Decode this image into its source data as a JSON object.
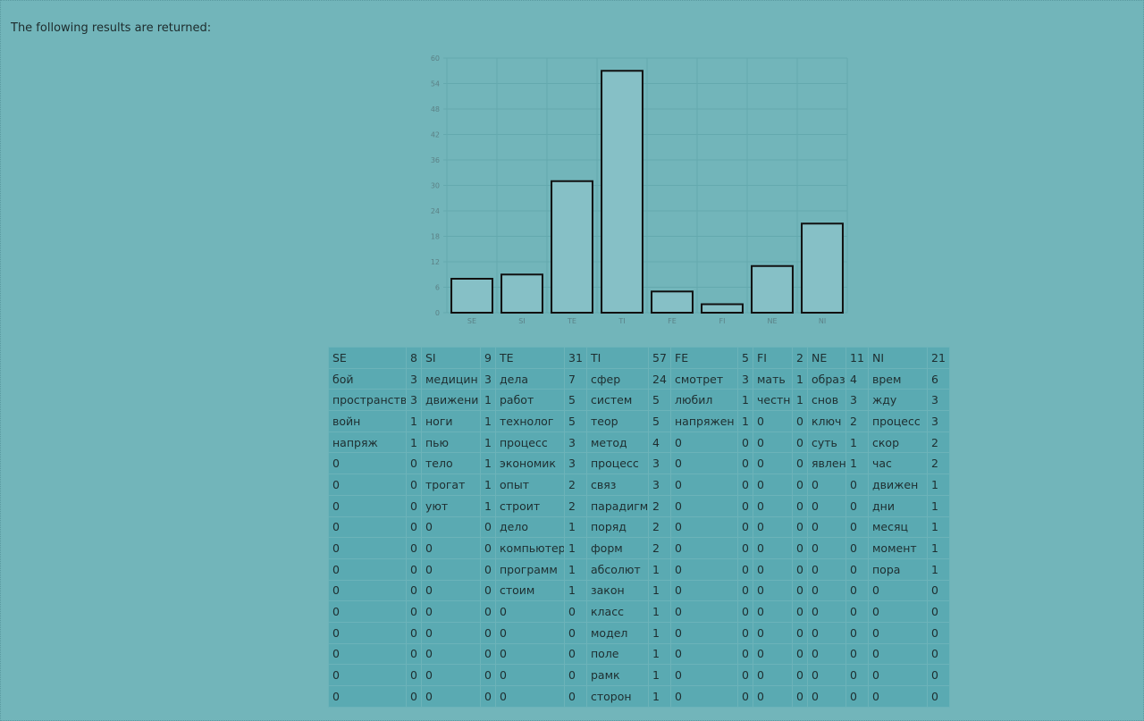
{
  "intro_text": "The following results are returned:",
  "chart_data": {
    "type": "bar",
    "categories": [
      "SE",
      "SI",
      "TE",
      "TI",
      "FE",
      "FI",
      "NE",
      "NI"
    ],
    "values": [
      8,
      9,
      31,
      57,
      5,
      2,
      11,
      21
    ],
    "title": "",
    "xlabel": "",
    "ylabel": "",
    "ylim": [
      0,
      60
    ],
    "yticks": [
      0,
      6,
      12,
      18,
      24,
      30,
      36,
      42,
      48,
      54,
      60
    ],
    "grid": true,
    "bar_fill": "#86c0c6",
    "bar_stroke": "#111111"
  },
  "table": {
    "columns": [
      {
        "word": "SE",
        "count": "8",
        "rows": [
          [
            "бой",
            "3"
          ],
          [
            "пространств",
            "3"
          ],
          [
            "войн",
            "1"
          ],
          [
            "напряж",
            "1"
          ],
          [
            "0",
            "0"
          ],
          [
            "0",
            "0"
          ],
          [
            "0",
            "0"
          ],
          [
            "0",
            "0"
          ],
          [
            "0",
            "0"
          ],
          [
            "0",
            "0"
          ],
          [
            "0",
            "0"
          ],
          [
            "0",
            "0"
          ],
          [
            "0",
            "0"
          ],
          [
            "0",
            "0"
          ],
          [
            "0",
            "0"
          ],
          [
            "0",
            "0"
          ]
        ]
      },
      {
        "word": "SI",
        "count": "9",
        "rows": [
          [
            "медицин",
            "3"
          ],
          [
            "движени",
            "1"
          ],
          [
            "ноги",
            "1"
          ],
          [
            "пью",
            "1"
          ],
          [
            "тело",
            "1"
          ],
          [
            "трогат",
            "1"
          ],
          [
            "уют",
            "1"
          ],
          [
            "0",
            "0"
          ],
          [
            "0",
            "0"
          ],
          [
            "0",
            "0"
          ],
          [
            "0",
            "0"
          ],
          [
            "0",
            "0"
          ],
          [
            "0",
            "0"
          ],
          [
            "0",
            "0"
          ],
          [
            "0",
            "0"
          ],
          [
            "0",
            "0"
          ]
        ]
      },
      {
        "word": "TE",
        "count": "31",
        "rows": [
          [
            "дела",
            "7"
          ],
          [
            "работ",
            "5"
          ],
          [
            "технолог",
            "5"
          ],
          [
            "процесс",
            "3"
          ],
          [
            "экономик",
            "3"
          ],
          [
            "опыт",
            "2"
          ],
          [
            "строит",
            "2"
          ],
          [
            "дело",
            "1"
          ],
          [
            "компьютер",
            "1"
          ],
          [
            "программ",
            "1"
          ],
          [
            "стоим",
            "1"
          ],
          [
            "0",
            "0"
          ],
          [
            "0",
            "0"
          ],
          [
            "0",
            "0"
          ],
          [
            "0",
            "0"
          ],
          [
            "0",
            "0"
          ]
        ]
      },
      {
        "word": "TI",
        "count": "57",
        "rows": [
          [
            "сфер",
            "24"
          ],
          [
            "систем",
            "5"
          ],
          [
            "теор",
            "5"
          ],
          [
            "метод",
            "4"
          ],
          [
            "процесс",
            "3"
          ],
          [
            "связ",
            "3"
          ],
          [
            "парадигм",
            "2"
          ],
          [
            "поряд",
            "2"
          ],
          [
            "форм",
            "2"
          ],
          [
            "абсолют",
            "1"
          ],
          [
            "закон",
            "1"
          ],
          [
            "класс",
            "1"
          ],
          [
            "модел",
            "1"
          ],
          [
            "поле",
            "1"
          ],
          [
            "рамк",
            "1"
          ],
          [
            "сторон",
            "1"
          ]
        ]
      },
      {
        "word": "FE",
        "count": "5",
        "rows": [
          [
            "смотрет",
            "3"
          ],
          [
            "любил",
            "1"
          ],
          [
            "напряжен",
            "1"
          ],
          [
            "0",
            "0"
          ],
          [
            "0",
            "0"
          ],
          [
            "0",
            "0"
          ],
          [
            "0",
            "0"
          ],
          [
            "0",
            "0"
          ],
          [
            "0",
            "0"
          ],
          [
            "0",
            "0"
          ],
          [
            "0",
            "0"
          ],
          [
            "0",
            "0"
          ],
          [
            "0",
            "0"
          ],
          [
            "0",
            "0"
          ],
          [
            "0",
            "0"
          ],
          [
            "0",
            "0"
          ]
        ]
      },
      {
        "word": "FI",
        "count": "2",
        "rows": [
          [
            "мать",
            "1"
          ],
          [
            "честн",
            "1"
          ],
          [
            "0",
            "0"
          ],
          [
            "0",
            "0"
          ],
          [
            "0",
            "0"
          ],
          [
            "0",
            "0"
          ],
          [
            "0",
            "0"
          ],
          [
            "0",
            "0"
          ],
          [
            "0",
            "0"
          ],
          [
            "0",
            "0"
          ],
          [
            "0",
            "0"
          ],
          [
            "0",
            "0"
          ],
          [
            "0",
            "0"
          ],
          [
            "0",
            "0"
          ],
          [
            "0",
            "0"
          ],
          [
            "0",
            "0"
          ]
        ]
      },
      {
        "word": "NE",
        "count": "11",
        "rows": [
          [
            "образ",
            "4"
          ],
          [
            "снов",
            "3"
          ],
          [
            "ключ",
            "2"
          ],
          [
            "суть",
            "1"
          ],
          [
            "явлен",
            "1"
          ],
          [
            "0",
            "0"
          ],
          [
            "0",
            "0"
          ],
          [
            "0",
            "0"
          ],
          [
            "0",
            "0"
          ],
          [
            "0",
            "0"
          ],
          [
            "0",
            "0"
          ],
          [
            "0",
            "0"
          ],
          [
            "0",
            "0"
          ],
          [
            "0",
            "0"
          ],
          [
            "0",
            "0"
          ],
          [
            "0",
            "0"
          ]
        ]
      },
      {
        "word": "NI",
        "count": "21",
        "rows": [
          [
            "врем",
            "6"
          ],
          [
            "жду",
            "3"
          ],
          [
            "процесс",
            "3"
          ],
          [
            "скор",
            "2"
          ],
          [
            "час",
            "2"
          ],
          [
            "движен",
            "1"
          ],
          [
            "дни",
            "1"
          ],
          [
            "месяц",
            "1"
          ],
          [
            "момент",
            "1"
          ],
          [
            "пора",
            "1"
          ],
          [
            "0",
            "0"
          ],
          [
            "0",
            "0"
          ],
          [
            "0",
            "0"
          ],
          [
            "0",
            "0"
          ],
          [
            "0",
            "0"
          ],
          [
            "0",
            "0"
          ]
        ]
      }
    ]
  }
}
